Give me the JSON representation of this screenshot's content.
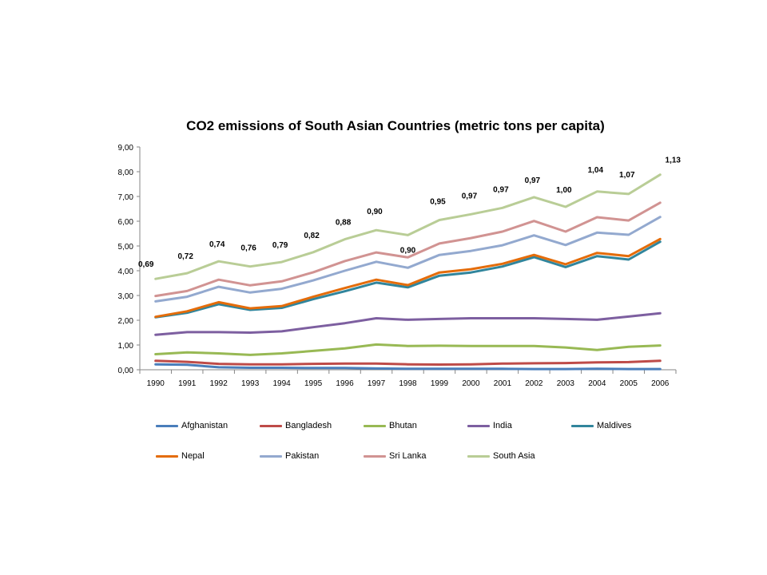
{
  "chart_data": {
    "type": "line",
    "title": "CO2 emissions of South Asian Countries  (metric tons per capita)",
    "xlabel": "",
    "ylabel": "",
    "ylim": [
      0,
      9
    ],
    "yticks": [
      "0,00",
      "1,00",
      "2,00",
      "3,00",
      "4,00",
      "5,00",
      "6,00",
      "7,00",
      "8,00",
      "9,00"
    ],
    "categories": [
      "1990",
      "1991",
      "1992",
      "1993",
      "1994",
      "1995",
      "1996",
      "1997",
      "1998",
      "1999",
      "2000",
      "2001",
      "2002",
      "2003",
      "2004",
      "2005",
      "2006"
    ],
    "legend_position": "bottom",
    "grid": false,
    "series": [
      {
        "name": "Afghanistan",
        "color": "#4a7ebb",
        "values": [
          0.22,
          0.2,
          0.1,
          0.08,
          0.08,
          0.07,
          0.07,
          0.05,
          0.04,
          0.04,
          0.04,
          0.04,
          0.03,
          0.03,
          0.04,
          0.03,
          0.03
        ]
      },
      {
        "name": "Bangladesh",
        "color": "#be4b48",
        "values": [
          0.36,
          0.32,
          0.24,
          0.22,
          0.22,
          0.24,
          0.25,
          0.25,
          0.22,
          0.21,
          0.22,
          0.25,
          0.26,
          0.27,
          0.3,
          0.31,
          0.36
        ]
      },
      {
        "name": "Bhutan",
        "color": "#98b954",
        "values": [
          0.63,
          0.7,
          0.66,
          0.6,
          0.66,
          0.76,
          0.86,
          1.02,
          0.96,
          0.97,
          0.96,
          0.96,
          0.96,
          0.9,
          0.8,
          0.93,
          0.98
        ]
      },
      {
        "name": "India",
        "color": "#7d5fa0",
        "values": [
          1.41,
          1.52,
          1.52,
          1.5,
          1.55,
          1.72,
          1.88,
          2.08,
          2.02,
          2.05,
          2.08,
          2.08,
          2.08,
          2.05,
          2.02,
          2.15,
          2.28
        ]
      },
      {
        "name": "Maldives",
        "color": "#31859c",
        "values": [
          2.12,
          2.3,
          2.65,
          2.42,
          2.5,
          2.85,
          3.17,
          3.52,
          3.33,
          3.8,
          3.93,
          4.17,
          4.55,
          4.15,
          4.59,
          4.45,
          5.17
        ]
      },
      {
        "name": "Nepal",
        "color": "#e46c0a",
        "values": [
          2.14,
          2.36,
          2.73,
          2.48,
          2.57,
          2.95,
          3.3,
          3.64,
          3.42,
          3.93,
          4.06,
          4.28,
          4.64,
          4.26,
          4.72,
          4.59,
          5.28
        ]
      },
      {
        "name": "Pakistan",
        "color": "#93a9cf",
        "values": [
          2.76,
          2.95,
          3.35,
          3.12,
          3.27,
          3.61,
          4.0,
          4.36,
          4.12,
          4.64,
          4.8,
          5.03,
          5.43,
          5.04,
          5.54,
          5.45,
          6.17
        ]
      },
      {
        "name": "Sri Lanka",
        "color": "#d19392",
        "values": [
          2.98,
          3.18,
          3.64,
          3.41,
          3.57,
          3.94,
          4.39,
          4.74,
          4.54,
          5.1,
          5.32,
          5.58,
          6.01,
          5.58,
          6.16,
          6.03,
          6.75
        ]
      },
      {
        "name": "South Asia",
        "color": "#b9cd96",
        "values": [
          3.67,
          3.9,
          4.38,
          4.17,
          4.35,
          4.75,
          5.27,
          5.64,
          5.44,
          6.05,
          6.28,
          6.54,
          6.97,
          6.58,
          7.2,
          7.1,
          7.88
        ]
      }
    ],
    "data_labels": {
      "series": "South Asia",
      "labels": [
        "0,69",
        "0,72",
        "0,74",
        "0,76",
        "0,79",
        "0,82",
        "0,88",
        "0,90",
        "0,90",
        "0,95",
        "0,97",
        "0,97",
        "0,97",
        "1,00",
        "1,04",
        "1,07",
        "1,13"
      ]
    }
  }
}
